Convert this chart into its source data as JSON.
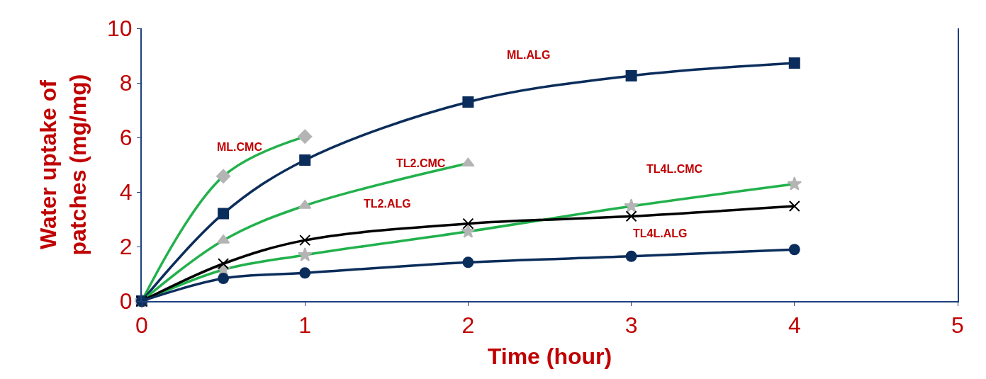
{
  "chart_data": {
    "type": "line",
    "xlabel": "Time (hour)",
    "ylabel": "Water uptake of\npatches (mg/mg)",
    "xlim": [
      0,
      5
    ],
    "xticks": [
      0,
      1,
      2,
      3,
      4,
      5
    ],
    "ylim": [
      0,
      10
    ],
    "yticks": [
      0,
      2,
      4,
      6,
      8,
      10
    ],
    "series": [
      {
        "color": "#22b14c",
        "marker": "diamond",
        "x": [
          0,
          0.5,
          1
        ],
        "values": [
          0,
          4.58,
          6.03
        ]
      },
      {
        "color": "#0b2d5b",
        "marker": "square",
        "x": [
          0,
          0.5,
          1,
          2,
          3,
          4
        ],
        "values": [
          0,
          3.21,
          5.17,
          7.3,
          8.26,
          8.73
        ]
      },
      {
        "color": "#22b14c",
        "marker": "triangle",
        "x": [
          0,
          0.5,
          1,
          2
        ],
        "values": [
          0,
          2.23,
          3.5,
          5.05
        ]
      },
      {
        "color": "#22b14c",
        "marker": "star",
        "x": [
          0,
          0.5,
          1,
          2,
          3,
          4
        ],
        "values": [
          0,
          1.15,
          1.69,
          2.55,
          3.48,
          4.29
        ]
      },
      {
        "color": "#000000",
        "marker": "cross",
        "x": [
          0,
          0.5,
          1,
          2,
          3,
          4
        ],
        "values": [
          0,
          1.37,
          2.23,
          2.84,
          3.11,
          3.48
        ]
      },
      {
        "color": "#0b2d5b",
        "marker": "circle",
        "x": [
          0,
          0.5,
          1,
          2,
          3,
          4
        ],
        "values": [
          0,
          0.83,
          1.03,
          1.42,
          1.64,
          1.89
        ]
      }
    ],
    "annotations": [
      "ML.ALG",
      "ML.CMC",
      "TL2.CMC",
      "TL2.ALG",
      "TL4L.CMC",
      "TL4L.ALG"
    ]
  }
}
